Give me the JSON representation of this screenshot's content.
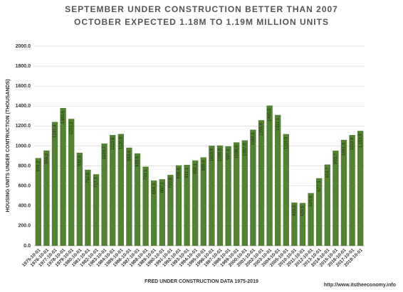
{
  "chart_data": {
    "type": "bar",
    "title": "SEPTEMBER UNDER CONSTRUCTION BETTER THAN 2007",
    "subtitle": "OCTOBER EXPECTED  1.18M TO 1.19M MILLION UNITS",
    "y_label": "HOUSING UNITS UNDER CONTRUCTION (THOUSANDS)",
    "x_label": "FRED UNDER CONSTRUCTION DATA 1975-2019",
    "source": "http://www.itstheeconomy.info",
    "color": "#548235",
    "categories": [
      "1975-10-01",
      "1976-10-01",
      "1977-10-01",
      "1978-10-01",
      "1979-10-01",
      "1980-10-01",
      "1981-10-01",
      "1982-10-01",
      "1983-10-01",
      "1984-10-01",
      "1985-10-01",
      "1986-10-01",
      "1987-10-01",
      "1988-10-01",
      "1989-10-01",
      "1990-10-01",
      "1991-10-01",
      "1992-10-01",
      "1993-10-01",
      "1994-10-01",
      "1995-10-01",
      "1996-10-01",
      "1997-10-01",
      "1998-10-01",
      "1999-10-01",
      "2000-10-01",
      "2001-10-01",
      "2002-10-01",
      "2003-10-01",
      "2004-10-01",
      "2005-10-01",
      "2010-10-01",
      "2011-10-01",
      "2012-10-01",
      "2013-10-01",
      "2014-10-01",
      "2015-10-01",
      "2016-10-01",
      "2017-10-01",
      "2018-10-01"
    ],
    "values": [
      879.2,
      955.2,
      1241.4,
      1380.6,
      1272.2,
      932.4,
      762.6,
      717.3,
      1024.7,
      1110.8,
      1120.8,
      983.6,
      926.6,
      793.1,
      654.3,
      667.1,
      710.8,
      806.4,
      811.1,
      855.1,
      886.4,
      1003.9,
      1005.5,
      997.3,
      1036.6,
      1057.0,
      1163.3,
      1258.8,
      1405.5,
      1311.1,
      1119.9,
      433.3,
      429.5,
      528.8,
      677.3,
      814.7,
      953.7,
      1061.4,
      1110.3,
      1151.9
    ],
    "value_labels": [
      "879.2",
      "955.2",
      "1241.4",
      "1380.6",
      "1272.2",
      "932.4",
      "762.6",
      "717.3",
      "1024.7",
      "1110.8",
      "1120.8",
      "983.6",
      "926.6",
      "793.1",
      "654.3",
      "667.1",
      "710.8",
      "806.4",
      "811.1",
      "855.1",
      "886.4",
      "1003.9",
      "1005.5",
      "997.3",
      "1036.6",
      "1057.0",
      "1163.3",
      "1258.8",
      "1405.5",
      "1311.1",
      "1119.9",
      "433.3",
      "429.5",
      "528.8",
      "677.3",
      "814.7",
      "953.7",
      "1061.4",
      "1110.3",
      "1,151.9"
    ],
    "ylim": [
      0,
      2000
    ],
    "yticks": [
      {
        "value": 0,
        "label": "0.0"
      },
      {
        "value": 200,
        "label": "200.0"
      },
      {
        "value": 400,
        "label": "400.0"
      },
      {
        "value": 600,
        "label": "600.0"
      },
      {
        "value": 800,
        "label": "800.0"
      },
      {
        "value": 1000,
        "label": "1000.0"
      },
      {
        "value": 1200,
        "label": "1200.0"
      },
      {
        "value": 1400,
        "label": "1400.0"
      },
      {
        "value": 1600,
        "label": "1600.0"
      },
      {
        "value": 1800,
        "label": "1800.0"
      },
      {
        "value": 2000,
        "label": "2000.0"
      }
    ],
    "grid": true
  }
}
